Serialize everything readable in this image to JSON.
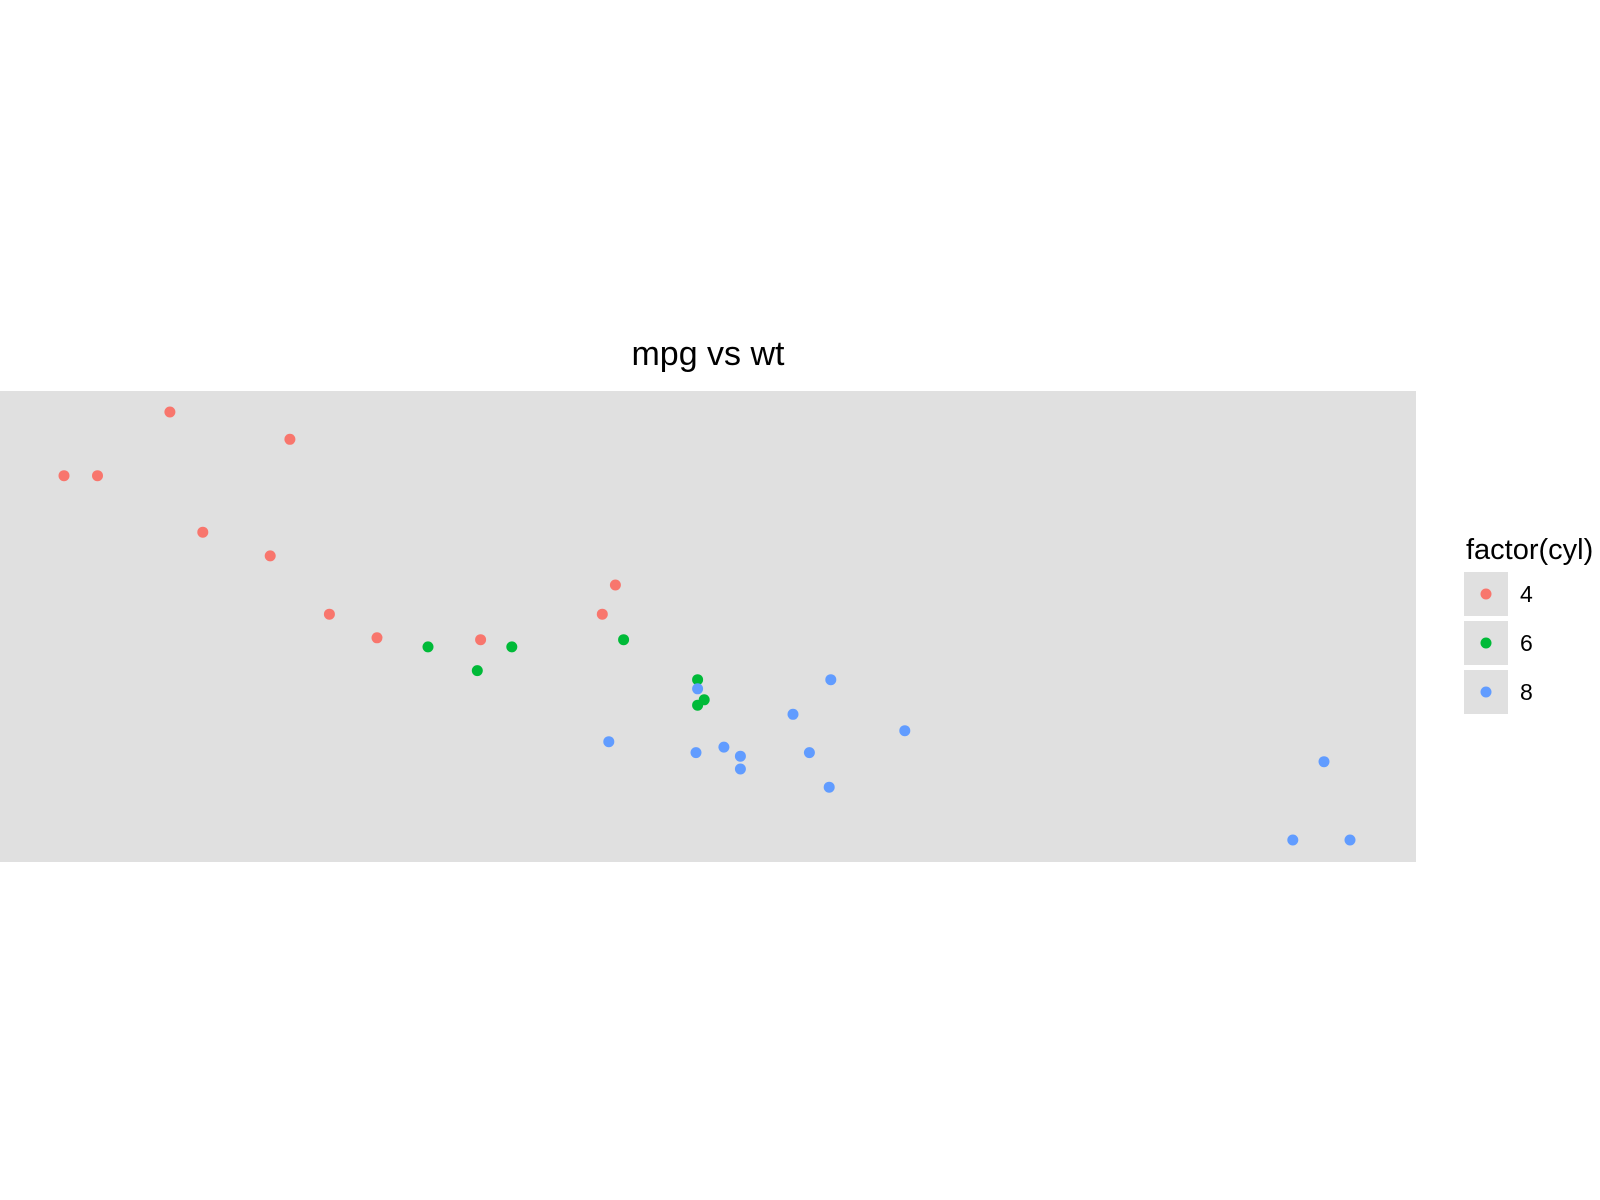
{
  "chart_data": {
    "type": "scatter",
    "title": "mpg vs wt",
    "xlabel": "",
    "ylabel": "",
    "xlim": [
      1.513,
      5.424
    ],
    "ylim": [
      10.4,
      33.9
    ],
    "grid": false,
    "axes_visible": false,
    "legend": {
      "title": "factor(cyl)",
      "placement": "right"
    },
    "panel_color": "#e0e0e0",
    "series": [
      {
        "name": "4",
        "color": "#f8766d",
        "points": [
          [
            2.32,
            22.8
          ],
          [
            3.19,
            24.4
          ],
          [
            3.15,
            22.8
          ],
          [
            2.2,
            32.4
          ],
          [
            1.615,
            30.4
          ],
          [
            1.835,
            33.9
          ],
          [
            2.465,
            21.5
          ],
          [
            1.935,
            27.3
          ],
          [
            2.14,
            26.0
          ],
          [
            1.513,
            30.4
          ],
          [
            2.78,
            21.4
          ]
        ]
      },
      {
        "name": "6",
        "color": "#00ba38",
        "points": [
          [
            2.62,
            21.0
          ],
          [
            2.875,
            21.0
          ],
          [
            3.215,
            21.4
          ],
          [
            3.46,
            18.1
          ],
          [
            3.44,
            19.2
          ],
          [
            3.44,
            17.8
          ],
          [
            2.77,
            19.7
          ]
        ]
      },
      {
        "name": "8",
        "color": "#619cff",
        "points": [
          [
            3.44,
            18.7
          ],
          [
            3.57,
            14.3
          ],
          [
            4.07,
            16.4
          ],
          [
            3.73,
            17.3
          ],
          [
            3.78,
            15.2
          ],
          [
            5.25,
            10.4
          ],
          [
            5.424,
            10.4
          ],
          [
            5.345,
            14.7
          ],
          [
            3.52,
            15.5
          ],
          [
            3.435,
            15.2
          ],
          [
            3.84,
            13.3
          ],
          [
            3.845,
            19.2
          ],
          [
            3.17,
            15.8
          ],
          [
            3.57,
            15.0
          ]
        ]
      }
    ]
  }
}
